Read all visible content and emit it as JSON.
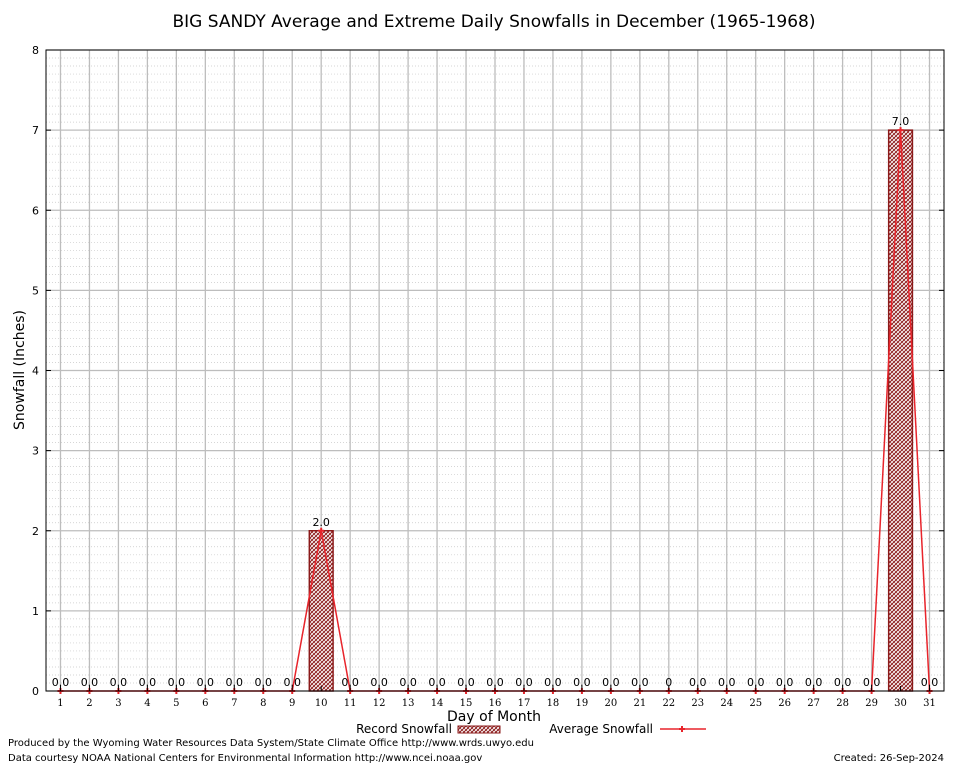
{
  "chart_data": {
    "type": "bar",
    "title": "BIG SANDY Average and Extreme Daily Snowfalls in December (1965-1968)",
    "xlabel": "Day of Month",
    "ylabel": "Snowfall (Inches)",
    "ylim": [
      0,
      8
    ],
    "y_ticks": [
      "0",
      "1",
      "2",
      "3",
      "4",
      "5",
      "6",
      "7",
      "8"
    ],
    "categories": [
      "1",
      "2",
      "3",
      "4",
      "5",
      "6",
      "7",
      "8",
      "9",
      "10",
      "11",
      "12",
      "13",
      "14",
      "15",
      "16",
      "17",
      "18",
      "19",
      "20",
      "21",
      "22",
      "23",
      "24",
      "25",
      "26",
      "27",
      "28",
      "29",
      "30",
      "31"
    ],
    "grid": true,
    "legend_position": "bottom-center",
    "series": [
      {
        "name": "Record Snowfall",
        "kind": "bar",
        "color": "#8b1a1a",
        "values": [
          0,
          0,
          0,
          0,
          0,
          0,
          0,
          0,
          0,
          2.0,
          0,
          0,
          0,
          0,
          0,
          0,
          0,
          0,
          0,
          0,
          0,
          0,
          0,
          0,
          0,
          0,
          0,
          0,
          0,
          7.0,
          0
        ]
      },
      {
        "name": "Average Snowfall",
        "kind": "line",
        "color": "#e8242b",
        "values": [
          0,
          0,
          0,
          0,
          0,
          0,
          0,
          0,
          0,
          2.0,
          0,
          0,
          0,
          0,
          0,
          0,
          0,
          0,
          0,
          0,
          0,
          0,
          0,
          0,
          0,
          0,
          0,
          0,
          0,
          7.0,
          0
        ]
      }
    ],
    "data_labels": [
      "0.0",
      "0.0",
      "0.0",
      "0.0",
      "0.0",
      "0.0",
      "0.0",
      "0.0",
      "0.0",
      "2.0",
      "0.0",
      "0.0",
      "0.0",
      "0.0",
      "0.0",
      "0.0",
      "0.0",
      "0.0",
      "0.0",
      "0.0",
      "0.0",
      "0",
      "0.0",
      "0.0",
      "0.0",
      "0.0",
      "0.0",
      "0.0",
      "0.0",
      "7.0",
      "0.0"
    ]
  },
  "footer": {
    "produced_by": "Produced by the Wyoming Water Resources Data System/State Climate Office http://www.wrds.uwyo.edu",
    "data_courtesy": "Data courtesy NOAA National Centers for Environmental Information http://www.ncei.noaa.gov",
    "created": "Created: 26-Sep-2024"
  }
}
